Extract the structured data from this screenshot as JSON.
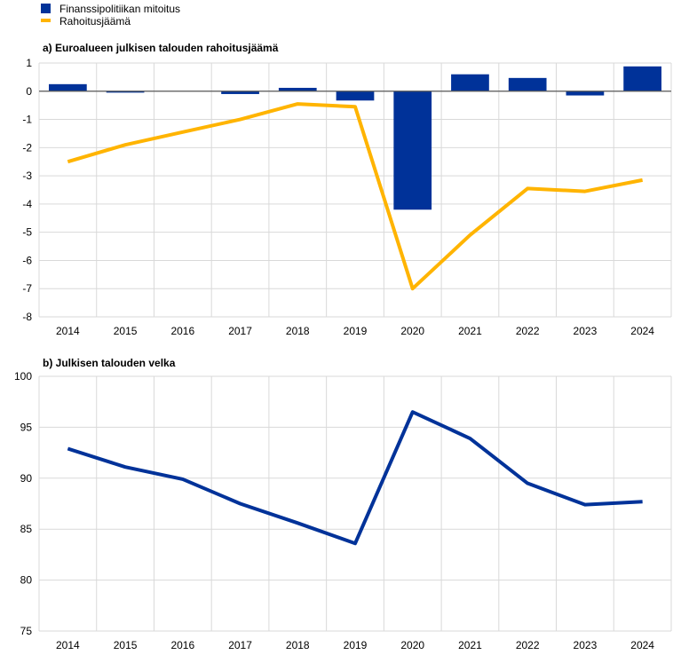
{
  "legend": {
    "items": [
      {
        "label": "Finanssipolitiikan mitoitus",
        "color": "#003299",
        "kind": "bar"
      },
      {
        "label": "Rahoitusjäämä",
        "color": "#FFB400",
        "kind": "line"
      }
    ]
  },
  "chart_data": [
    {
      "type": "bar+line",
      "title": "a) Euroalueen julkisen talouden rahoitusjäämä",
      "categories": [
        "2014",
        "2015",
        "2016",
        "2017",
        "2018",
        "2019",
        "2020",
        "2021",
        "2022",
        "2023",
        "2024"
      ],
      "ylim": [
        -8,
        1
      ],
      "yticks": [
        1,
        0,
        -1,
        -2,
        -3,
        -4,
        -5,
        -6,
        -7,
        -8
      ],
      "grid": true,
      "series": [
        {
          "name": "Finanssipolitiikan mitoitus",
          "type": "bar",
          "color": "#003299",
          "values": [
            0.25,
            -0.05,
            0.0,
            -0.1,
            0.12,
            -0.33,
            -4.2,
            0.6,
            0.47,
            -0.15,
            0.88
          ]
        },
        {
          "name": "Rahoitusjäämä",
          "type": "line",
          "color": "#FFB400",
          "values": [
            -2.5,
            -1.9,
            -1.45,
            -1.0,
            -0.45,
            -0.55,
            -7.0,
            -5.1,
            -3.45,
            -3.55,
            -3.15
          ]
        }
      ]
    },
    {
      "type": "line",
      "title": "b) Julkisen talouden velka",
      "categories": [
        "2014",
        "2015",
        "2016",
        "2017",
        "2018",
        "2019",
        "2020",
        "2021",
        "2022",
        "2023",
        "2024"
      ],
      "ylim": [
        75,
        100
      ],
      "yticks": [
        100,
        95,
        90,
        85,
        80,
        75
      ],
      "grid": true,
      "series": [
        {
          "type": "line",
          "color": "#003299",
          "values": [
            92.9,
            91.1,
            89.9,
            87.5,
            85.6,
            83.6,
            96.5,
            93.9,
            89.5,
            87.4,
            87.7
          ]
        }
      ]
    }
  ]
}
